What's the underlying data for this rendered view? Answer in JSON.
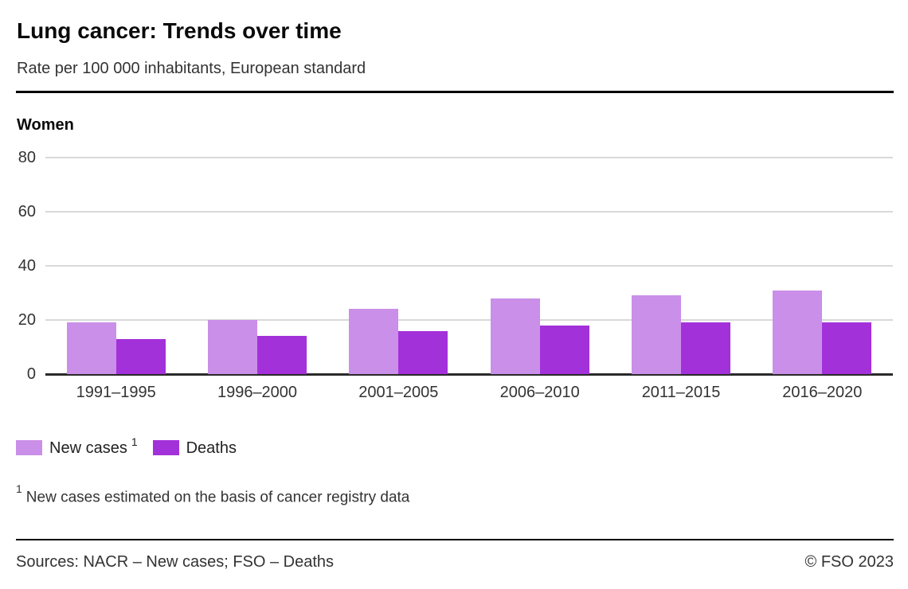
{
  "header": {
    "title": "Lung cancer: Trends over time",
    "subtitle": "Rate per 100 000 inhabitants, European standard"
  },
  "chart_data": {
    "type": "bar",
    "title": "Women",
    "categories": [
      "1991–1995",
      "1996–2000",
      "2001–2005",
      "2006–2010",
      "2011–2015",
      "2016–2020"
    ],
    "series": [
      {
        "name": "New cases",
        "footnote_marker": "1",
        "color": "#ca8fe8",
        "values": [
          19,
          20,
          24,
          28,
          29,
          31
        ]
      },
      {
        "name": "Deaths",
        "footnote_marker": "",
        "color": "#a331d9",
        "values": [
          13,
          14,
          16,
          18,
          19,
          19
        ]
      }
    ],
    "ylim": [
      0,
      80
    ],
    "yticks": [
      0,
      20,
      40,
      60,
      80
    ],
    "grid": true,
    "legend_position": "bottom",
    "gridline_color": "#d9d9d9",
    "axis_line_color": "#2a2a2a"
  },
  "footnote": {
    "marker": "1",
    "text": "New cases estimated on the basis of cancer registry data"
  },
  "footer": {
    "sources": "Sources: NACR – New cases; FSO – Deaths",
    "copyright": "© FSO 2023"
  }
}
